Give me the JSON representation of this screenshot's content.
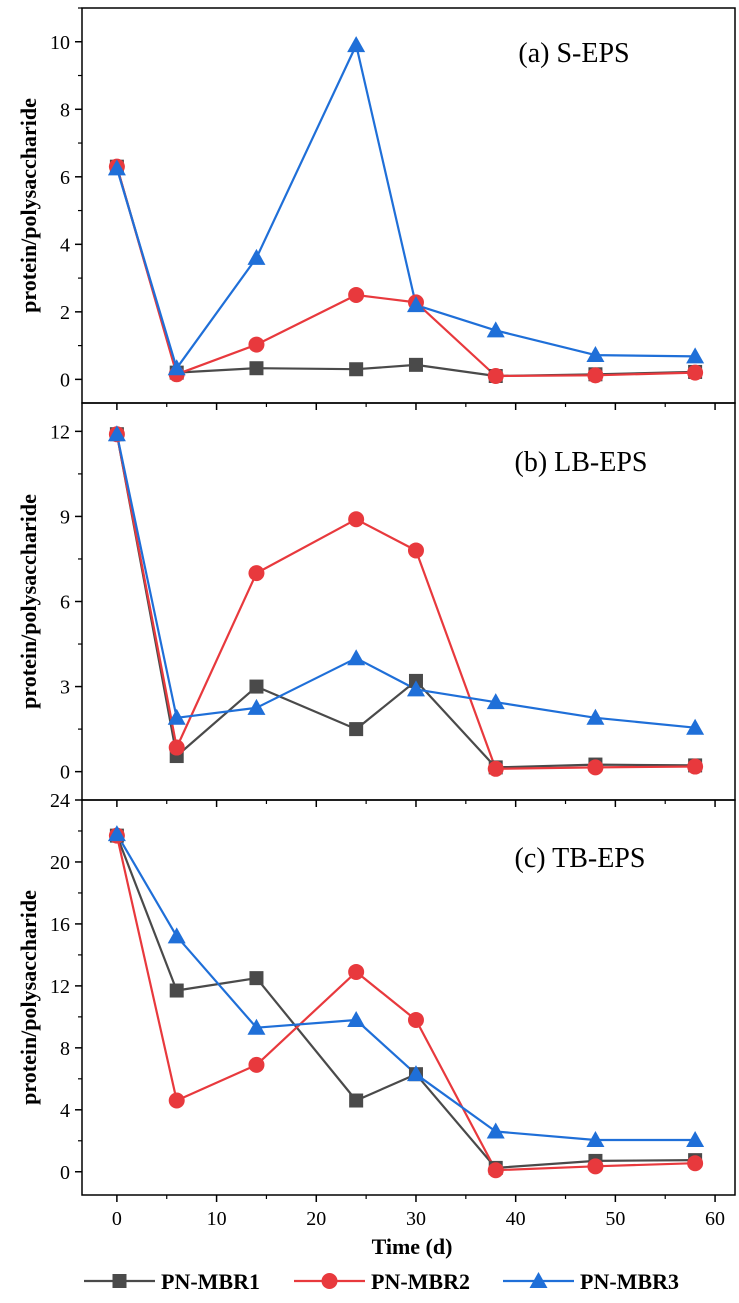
{
  "chart_data": {
    "type": "line",
    "xlabel": "Time (d)",
    "x_ticks": [
      "0",
      "10",
      "20",
      "30",
      "40",
      "50",
      "60"
    ],
    "xlim": [
      -3.5,
      62
    ],
    "legend": {
      "placement": "bottom",
      "entries": [
        "PN-MBR1",
        "PN-MBR2",
        "PN-MBR3"
      ]
    },
    "colors": {
      "PN-MBR1": "#4a4a4a",
      "PN-MBR2": "#e8393d",
      "PN-MBR3": "#1f6fd8"
    },
    "markers": {
      "PN-MBR1": "square",
      "PN-MBR2": "circle",
      "PN-MBR3": "triangle"
    },
    "x": [
      0,
      6,
      14,
      24,
      30,
      38,
      48,
      58
    ],
    "panels": [
      {
        "label": "(a) S-EPS",
        "ylabel": "protein/polysaccharide",
        "ylim": [
          -0.7,
          11
        ],
        "y_ticks": [
          "0",
          "2",
          "4",
          "6",
          "8",
          "10"
        ],
        "series": [
          {
            "name": "PN-MBR1",
            "values": [
              6.3,
              0.2,
              0.33,
              0.3,
              0.43,
              0.1,
              0.15,
              0.22
            ]
          },
          {
            "name": "PN-MBR2",
            "values": [
              6.3,
              0.15,
              1.03,
              2.5,
              2.28,
              0.1,
              0.12,
              0.2
            ]
          },
          {
            "name": "PN-MBR3",
            "values": [
              6.25,
              0.33,
              3.6,
              9.9,
              2.2,
              1.45,
              0.72,
              0.68
            ]
          }
        ]
      },
      {
        "label": "(b) LB-EPS",
        "ylabel": "protein/polysaccharide",
        "ylim": [
          -1,
          13
        ],
        "y_ticks": [
          "0",
          "3",
          "6",
          "9",
          "12"
        ],
        "series": [
          {
            "name": "PN-MBR1",
            "values": [
              11.9,
              0.55,
              3.0,
              1.5,
              3.2,
              0.15,
              0.25,
              0.22
            ]
          },
          {
            "name": "PN-MBR2",
            "values": [
              11.9,
              0.85,
              7.0,
              8.9,
              7.8,
              0.1,
              0.15,
              0.18
            ]
          },
          {
            "name": "PN-MBR3",
            "values": [
              11.9,
              1.9,
              2.25,
              4.0,
              2.9,
              2.45,
              1.9,
              1.55
            ]
          }
        ]
      },
      {
        "label": "(c) TB-EPS",
        "ylabel": "protein/polysaccharide",
        "ylim": [
          -1.5,
          24
        ],
        "y_ticks": [
          "0",
          "4",
          "8",
          "12",
          "16",
          "20",
          "24"
        ],
        "series": [
          {
            "name": "PN-MBR1",
            "values": [
              21.7,
              11.7,
              12.5,
              4.6,
              6.3,
              0.25,
              0.7,
              0.75
            ]
          },
          {
            "name": "PN-MBR2",
            "values": [
              21.7,
              4.6,
              6.9,
              12.9,
              9.8,
              0.1,
              0.35,
              0.55
            ]
          },
          {
            "name": "PN-MBR3",
            "values": [
              21.8,
              15.2,
              9.3,
              9.8,
              6.3,
              2.6,
              2.05,
              2.05
            ]
          }
        ]
      }
    ]
  }
}
